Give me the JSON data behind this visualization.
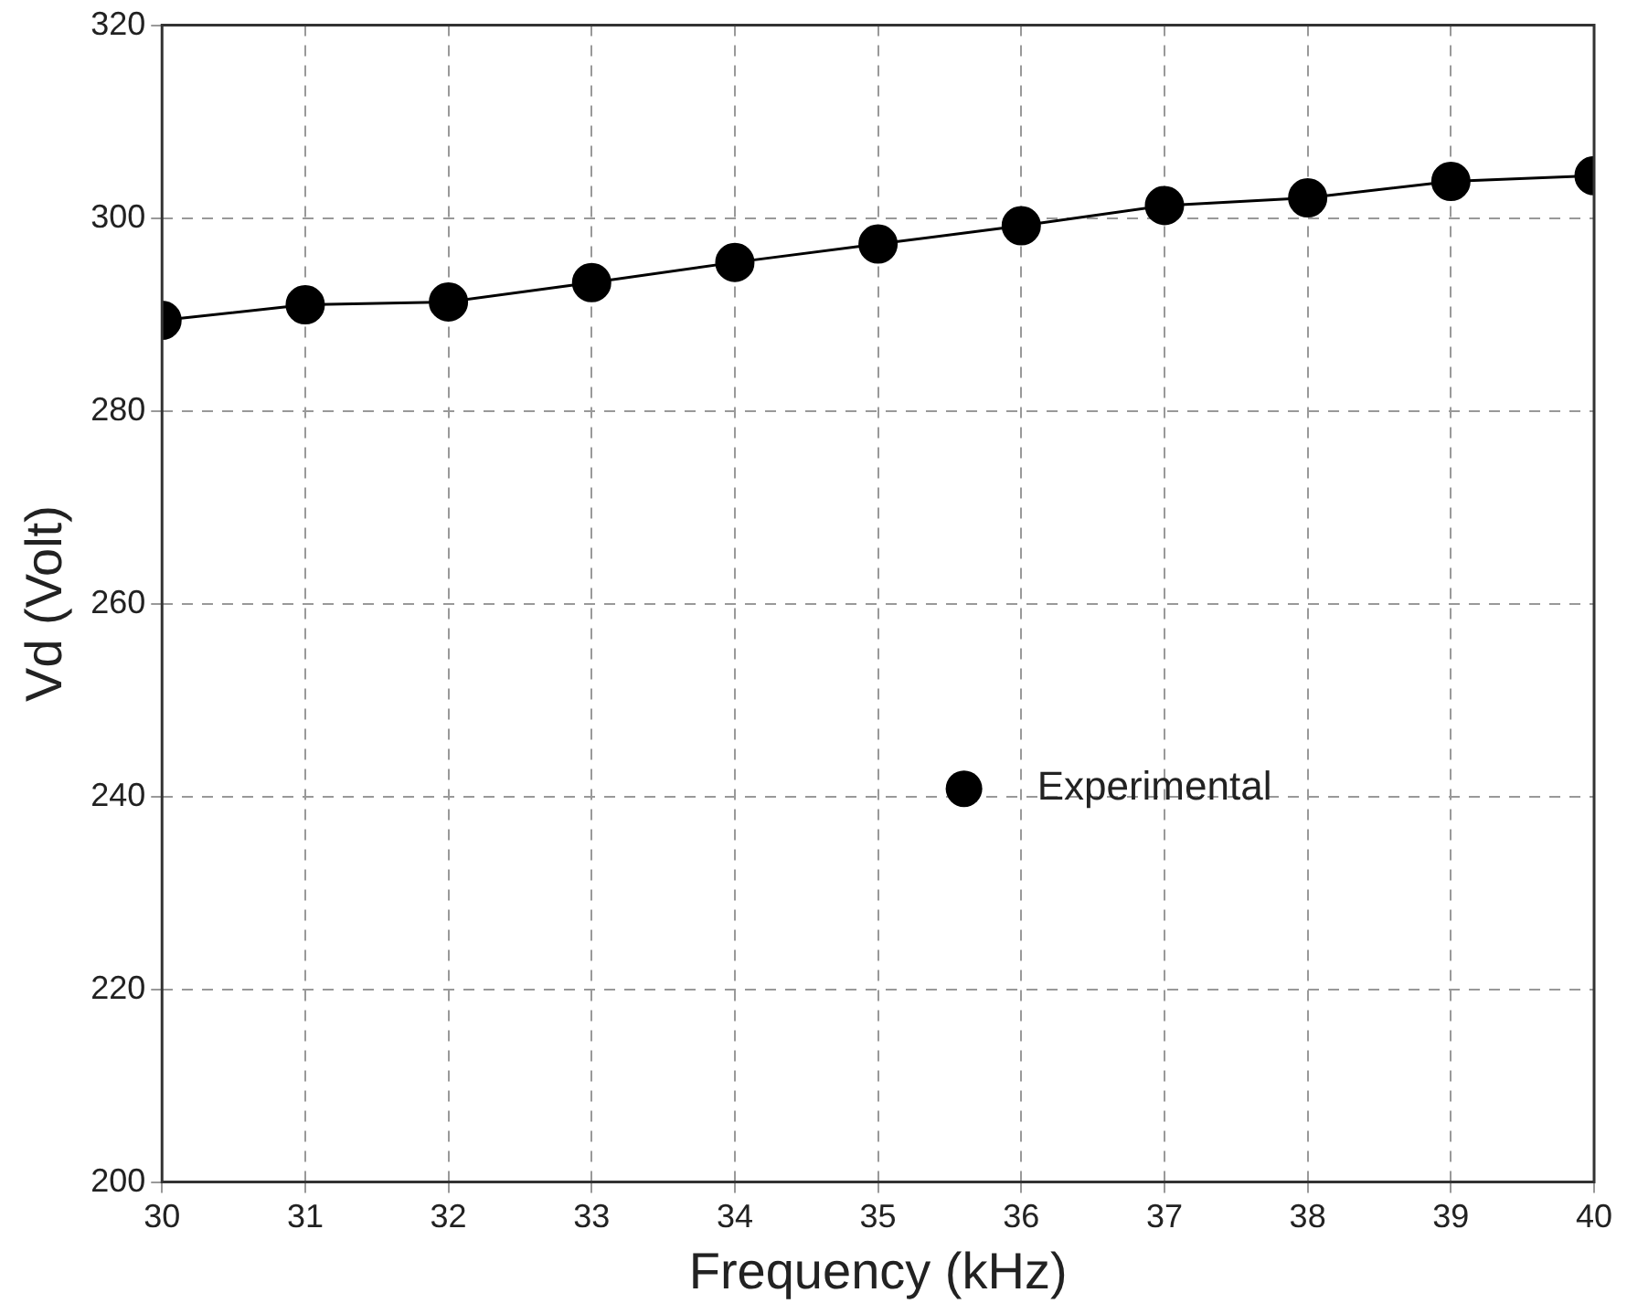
{
  "chart_data": {
    "type": "line",
    "xlabel": "Frequency (kHz)",
    "ylabel": "Vd (Volt)",
    "x": [
      30,
      31,
      32,
      33,
      34,
      35,
      36,
      37,
      38,
      39,
      40
    ],
    "series": [
      {
        "name": "Experimental",
        "color": "#000000",
        "values": [
          289.4,
          291.0,
          291.3,
          293.3,
          295.4,
          297.3,
          299.2,
          301.3,
          302.1,
          303.8,
          304.4
        ]
      }
    ],
    "xlim": [
      30,
      40
    ],
    "xticks": [
      30,
      31,
      32,
      33,
      34,
      35,
      36,
      37,
      38,
      39,
      40
    ],
    "ylim": [
      200,
      320
    ],
    "yticks": [
      200,
      220,
      240,
      260,
      280,
      300,
      320
    ],
    "grid": true,
    "legend": "center right",
    "marker": "circle",
    "line_style": "solid"
  }
}
